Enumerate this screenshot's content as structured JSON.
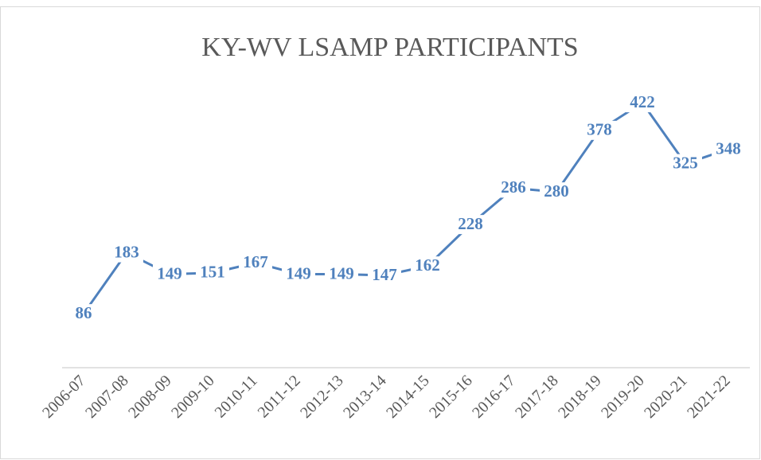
{
  "chart_data": {
    "type": "line",
    "title": "KY-WV LSAMP PARTICIPANTS",
    "categories": [
      "2006-07",
      "2007-08",
      "2008-09",
      "2009-10",
      "2010-11",
      "2011-12",
      "2012-13",
      "2013-14",
      "2014-15",
      "2015-16",
      "2016-17",
      "2017-18",
      "2018-19",
      "2019-20",
      "2020-21",
      "2021-22"
    ],
    "values": [
      86,
      183,
      149,
      151,
      167,
      149,
      149,
      147,
      162,
      228,
      286,
      280,
      378,
      422,
      325,
      348
    ],
    "color": "#4f81bd",
    "ylim": [
      0,
      450
    ]
  }
}
